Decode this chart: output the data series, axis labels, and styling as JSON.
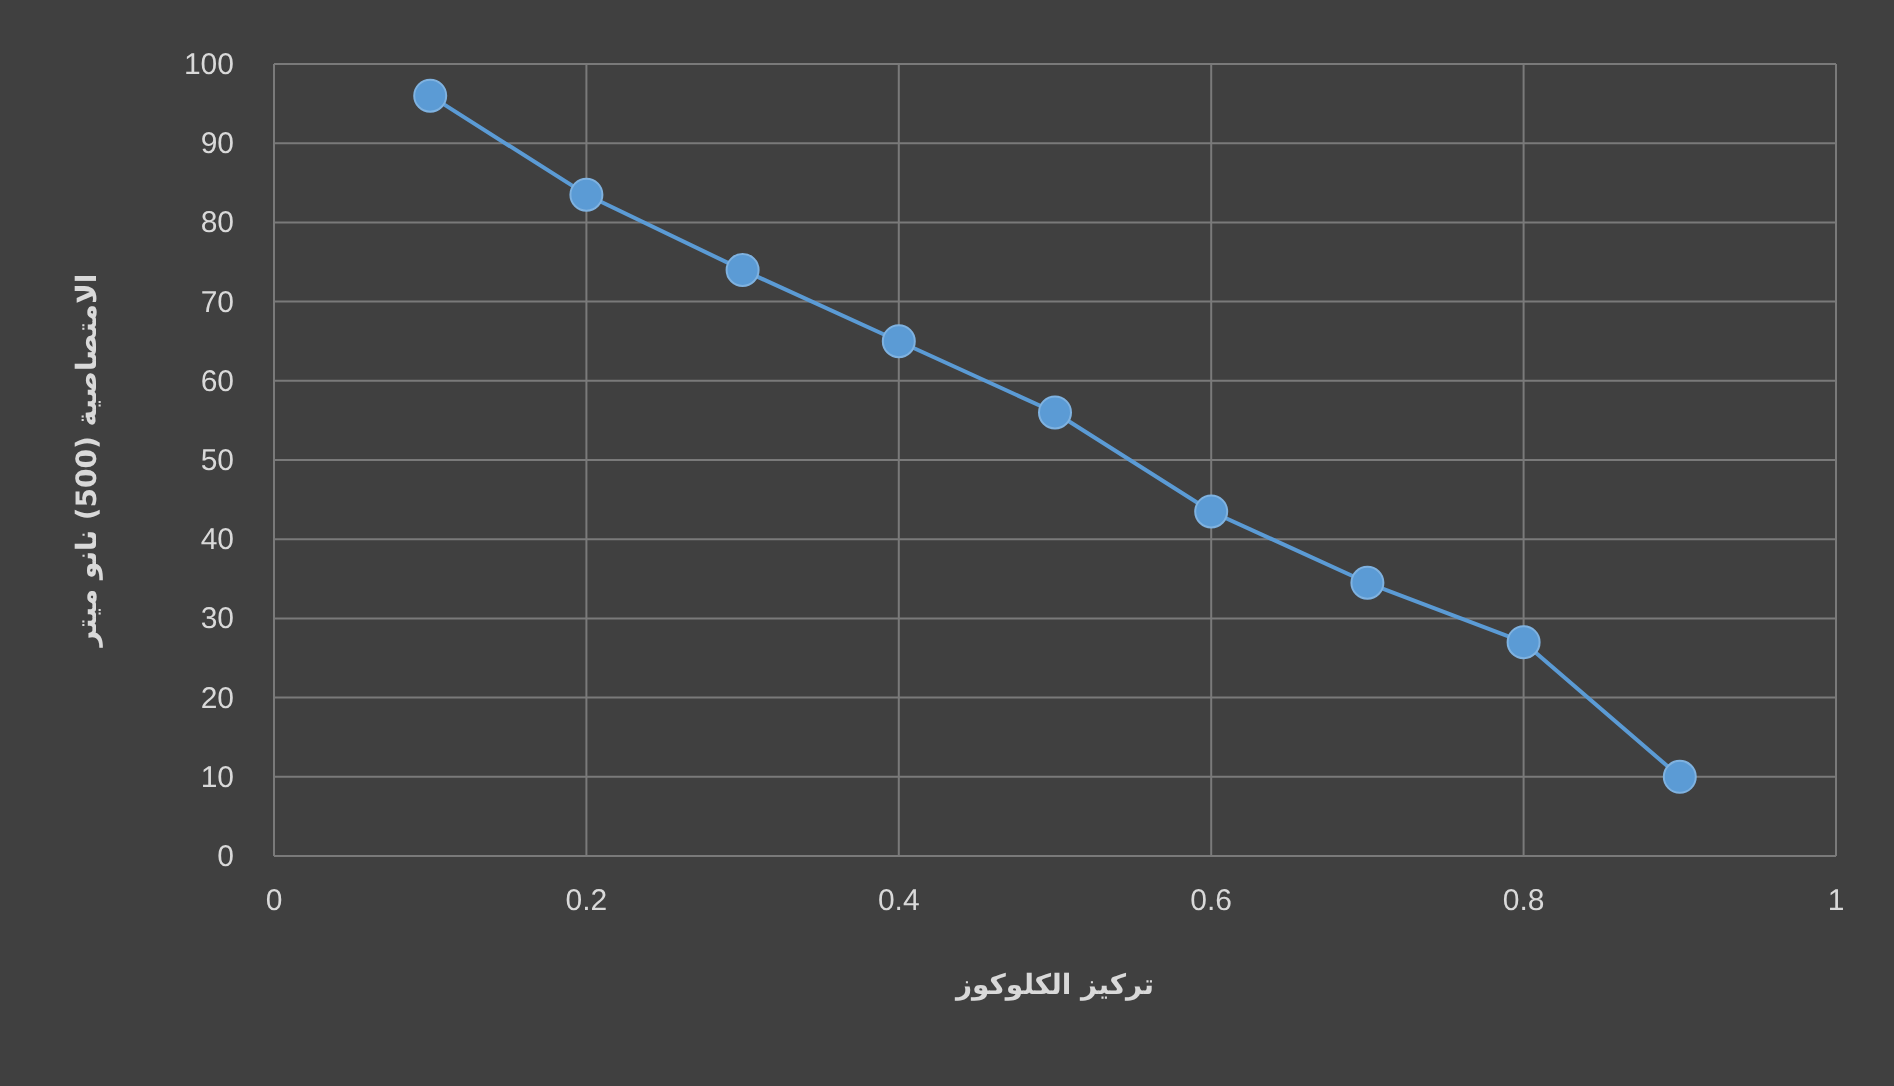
{
  "chart_data": {
    "type": "line",
    "xlabel": "تركيز الكلوكوز",
    "ylabel": "الامتصاصية (500) نانو ميتر",
    "x": [
      0.1,
      0.2,
      0.3,
      0.4,
      0.5,
      0.6,
      0.7,
      0.8,
      0.9
    ],
    "series": [
      {
        "color": "#5b9bd5",
        "values": [
          96,
          83.5,
          74,
          65,
          56,
          43.5,
          34.5,
          27,
          10
        ]
      }
    ],
    "xlim": [
      0,
      1
    ],
    "xticks": [
      0,
      0.2,
      0.4,
      0.6,
      0.8,
      1
    ],
    "ylim": [
      0,
      100
    ],
    "yticks": [
      0,
      10,
      20,
      30,
      40,
      50,
      60,
      70,
      80,
      90,
      100
    ],
    "grid": true,
    "marker": "circle",
    "line_style": "solid"
  }
}
